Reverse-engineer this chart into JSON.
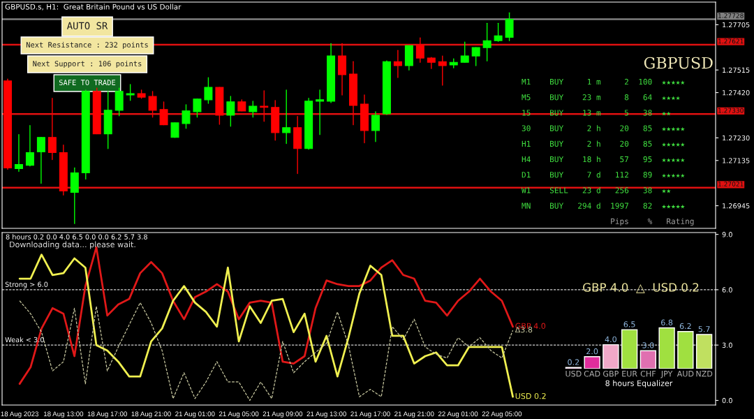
{
  "chart_data": [
    {
      "type": "candlestick",
      "title": "GBPUSD.s, H1:  Great Britain Pound vs US Dollar",
      "categories": [
        null,
        null,
        null,
        null,
        null,
        null,
        null,
        null,
        null,
        null,
        null,
        null,
        null,
        null,
        null,
        null,
        null,
        null,
        null,
        null,
        null,
        null,
        null,
        null,
        null,
        null,
        null,
        null,
        null,
        null,
        null,
        null,
        null,
        null,
        null,
        null,
        null,
        null,
        null,
        null,
        null,
        null,
        null,
        null,
        null,
        null,
        null,
        null,
        null,
        null,
        null,
        null,
        null,
        null,
        null,
        null,
        null,
        null,
        null,
        null,
        null,
        null,
        null,
        null
      ],
      "ohlc": [
        [
          1.27469,
          1.27477,
          1.27098,
          1.27104
        ],
        [
          1.27101,
          1.27244,
          1.27089,
          1.27118
        ],
        [
          1.27115,
          1.27282,
          1.27112,
          1.27168
        ],
        [
          1.27171,
          1.27232,
          1.27039,
          1.27232
        ],
        [
          1.27232,
          1.27396,
          1.27139,
          1.27168
        ],
        [
          1.27168,
          1.272,
          1.2699,
          1.27007
        ],
        [
          1.27001,
          1.27104,
          1.2687,
          1.27083
        ],
        [
          1.27083,
          1.27431,
          1.27057,
          1.27425
        ],
        [
          1.27425,
          1.27439,
          1.27247,
          1.27247
        ],
        [
          1.27247,
          1.27425,
          1.27185,
          1.27346
        ],
        [
          1.27346,
          1.27439,
          1.27323,
          1.27425
        ],
        [
          1.2741,
          1.27454,
          1.27387,
          1.27416
        ],
        [
          1.27416,
          1.27431,
          1.27396,
          1.27401
        ],
        [
          1.27404,
          1.27425,
          1.27317,
          1.27346
        ],
        [
          1.27349,
          1.27381,
          1.27285,
          1.27285
        ],
        [
          1.27232,
          1.27293,
          1.27232,
          1.27293
        ],
        [
          1.2729,
          1.27369,
          1.2727,
          1.27343
        ],
        [
          1.2734,
          1.27393,
          1.27317,
          1.27393
        ],
        [
          1.2739,
          1.27483,
          1.27375,
          1.27442
        ],
        [
          1.27442,
          1.27442,
          1.27287,
          1.27325
        ],
        [
          1.27325,
          1.27404,
          1.27279,
          1.27381
        ],
        [
          1.27381,
          1.2739,
          1.27343,
          1.27343
        ],
        [
          1.2734,
          1.27384,
          1.27317,
          1.27363
        ],
        [
          1.27363,
          1.27428,
          1.27299,
          1.27358
        ],
        [
          1.27358,
          1.27387,
          1.2722,
          1.27252
        ],
        [
          1.27252,
          1.27431,
          1.27206,
          1.27273
        ],
        [
          1.27273,
          1.2732,
          1.2708,
          1.27185
        ],
        [
          1.27185,
          1.27396,
          1.27182,
          1.27384
        ],
        [
          1.27384,
          1.27431,
          1.27244,
          1.2739
        ],
        [
          1.27384,
          1.27626,
          1.27378,
          1.27574
        ],
        [
          1.27574,
          1.27626,
          1.2741,
          1.27495
        ],
        [
          1.27498,
          1.2755,
          1.27285,
          1.27366
        ],
        [
          1.27372,
          1.2741,
          1.27209,
          1.27261
        ],
        [
          1.27261,
          1.2734,
          1.27214,
          1.27325
        ],
        [
          1.27331,
          1.27553,
          1.27328,
          1.2755
        ],
        [
          1.2755,
          1.27597,
          1.27483,
          1.27533
        ],
        [
          1.27533,
          1.27617,
          1.27515,
          1.27617
        ],
        [
          1.2762,
          1.2765,
          1.27547,
          1.27565
        ],
        [
          1.27565,
          1.27568,
          1.27521,
          1.27547
        ],
        [
          1.2755,
          1.27574,
          1.27451,
          1.27533
        ],
        [
          1.27536,
          1.27562,
          1.27524,
          1.27547
        ],
        [
          1.27547,
          1.27632,
          1.27547,
          1.27574
        ],
        [
          1.27574,
          1.27609,
          1.27533,
          1.27609
        ],
        [
          1.27609,
          1.27711,
          1.27553,
          1.27638
        ],
        [
          1.27638,
          1.27711,
          1.27635,
          1.27658
        ],
        [
          1.27652,
          1.27755,
          1.27638,
          1.27728
        ],
        null,
        null,
        null,
        null,
        null,
        null,
        null,
        null,
        null,
        null,
        null,
        null,
        null,
        null,
        null,
        null,
        null,
        null
      ],
      "ylim": [
        1.2685,
        1.278
      ],
      "yticks": [
        {
          "value": 1.26945,
          "label": "1.26945"
        },
        {
          "value": 1.27135,
          "label": "1.27135"
        },
        {
          "value": 1.2723,
          "label": "1.27230"
        },
        {
          "value": 1.2742,
          "label": "1.27420"
        },
        {
          "value": 1.27515,
          "label": "1.27515"
        },
        {
          "value": 1.27705,
          "label": "1.27705"
        }
      ],
      "tick_labels": "y",
      "ref_lines": [
        {
          "axis": "y",
          "value": 1.27728,
          "label": "1.27728",
          "color": "#808080"
        },
        {
          "axis": "y",
          "value": 1.27621,
          "label": "1.27621",
          "color": "#e01010"
        },
        {
          "axis": "y",
          "value": 1.2733,
          "label": "1.27330",
          "color": "#e01010"
        },
        {
          "axis": "y",
          "value": 1.27021,
          "label": "1.27021",
          "color": "#e01010"
        }
      ],
      "annotations": [
        "AUTO SR",
        "Next Resistance : 232 points",
        "Next Support : 106 points",
        "SAFE TO TRADE",
        "GBPUSD",
        "M1    BUY     1 m     2  100  ★★★★★",
        "M5    BUY    23 m     8   64  ★★★★",
        "15    BUY    13 m     5   38  ★★",
        "30    BUY     2 h    20   85  ★★★★★",
        "H1    BUY     2 h    20   85  ★★★★★",
        "H4    BUY    18 h    57   95  ★★★★★",
        "D1    BUY     7 d   112   89  ★★★★★",
        "W1    SELL   23 d   256   38  ★★",
        "MN    BUY   294 d  1997   82  ★★★★★",
        "                   Pips    %   Rating"
      ]
    },
    {
      "type": "line",
      "categories": [
        "18 Aug 2023",
        null,
        null,
        null,
        "18 Aug 13:00",
        null,
        null,
        null,
        "18 Aug 17:00",
        null,
        null,
        null,
        "18 Aug 21:00",
        null,
        null,
        null,
        "21 Aug 01:00",
        null,
        null,
        null,
        "21 Aug 05:00",
        null,
        null,
        null,
        "21 Aug 09:00",
        null,
        null,
        null,
        "21 Aug 13:00",
        null,
        null,
        null,
        "21 Aug 17:00",
        null,
        null,
        null,
        "21 Aug 21:00",
        null,
        null,
        null,
        "22 Aug 01:00",
        null,
        null,
        null,
        "22 Aug 05:00",
        null,
        null,
        null,
        null,
        null,
        null,
        null,
        null,
        null,
        null,
        null,
        null,
        null,
        null,
        null,
        null,
        null,
        null,
        null
      ],
      "series": [
        {
          "name": "GBP 4.0",
          "color": "#e01818",
          "values": [
            0.9,
            1.8,
            3.9,
            5.0,
            4.7,
            2.4,
            6.2,
            8.3,
            4.6,
            5.2,
            5.5,
            6.9,
            7.5,
            6.9,
            5.4,
            4.4,
            5.6,
            5.9,
            6.3,
            5.9,
            4.4,
            5.3,
            5.4,
            5.3,
            2.1,
            2.0,
            2.4,
            5.0,
            6.5,
            6.3,
            6.2,
            6.2,
            6.5,
            7.2,
            7.6,
            6.8,
            6.6,
            5.4,
            5.3,
            4.6,
            5.4,
            5.9,
            6.6,
            5.9,
            5.4,
            4.0,
            null,
            null,
            null,
            null,
            null,
            null,
            null,
            null,
            null,
            null,
            null,
            null,
            null,
            null,
            null,
            null,
            null,
            null
          ]
        },
        {
          "name": "USD 0.2",
          "color": "#f0f050",
          "values": [
            6.6,
            6.6,
            7.9,
            6.8,
            6.9,
            7.7,
            7.2,
            3.0,
            2.7,
            2.1,
            1.3,
            1.3,
            3.2,
            3.9,
            5.4,
            6.2,
            5.3,
            4.8,
            4.0,
            7.2,
            3.2,
            5.1,
            4.2,
            5.4,
            5.5,
            3.7,
            4.7,
            2.1,
            3.5,
            1.3,
            3.4,
            5.8,
            7.3,
            6.8,
            3.5,
            3.5,
            2.0,
            2.4,
            2.6,
            1.9,
            1.9,
            2.9,
            2.9,
            2.9,
            2.9,
            0.2,
            null,
            null,
            null,
            null,
            null,
            null,
            null,
            null,
            null,
            null,
            null,
            null,
            null,
            null,
            null,
            null,
            null,
            null
          ]
        },
        {
          "name": "Δ3.8",
          "color": "#c8c8a0",
          "line_style": "dashed",
          "values": [
            5.4,
            4.7,
            3.7,
            1.6,
            2.1,
            5.0,
            0.9,
            5.1,
            1.6,
            2.9,
            4.1,
            5.3,
            4.2,
            2.7,
            0.1,
            1.5,
            0.1,
            1.0,
            2.1,
            1.0,
            1.0,
            0.0,
            1.0,
            0.1,
            3.2,
            1.5,
            2.1,
            2.6,
            3.1,
            4.8,
            3.0,
            0.2,
            0.6,
            0.2,
            4.0,
            3.3,
            4.4,
            2.9,
            2.5,
            2.3,
            3.4,
            2.9,
            3.4,
            2.7,
            2.3,
            3.8,
            null,
            null,
            null,
            null,
            null,
            null,
            null,
            null,
            null,
            null,
            null,
            null,
            null,
            null,
            null,
            null,
            null,
            null
          ]
        }
      ],
      "ylim": [
        -0.25,
        9.1
      ],
      "yticks": [
        {
          "value": 0,
          "label": "0.0"
        },
        {
          "value": 3,
          "label": "3.0"
        },
        {
          "value": 6,
          "label": "6.0"
        },
        {
          "value": 9,
          "label": "9.0"
        }
      ],
      "ref_lines": [
        {
          "axis": "y",
          "value": 6,
          "label": "Strong > 6.0",
          "color": "#d0d0d0",
          "line_style": "dashed"
        },
        {
          "axis": "y",
          "value": 3,
          "label": "Weak < 3.0",
          "color": "#d0d0d0",
          "line_style": "dashed"
        }
      ],
      "annotations": [
        "8 hours 0.2 0.0 4.0 6.5 0.0 0.0 6.2 5.7 3.8",
        "Downloading data... please wait.",
        "GBP 4.0  △  USD 0.2"
      ]
    },
    {
      "type": "bar",
      "categories": [
        "USD",
        "CAD",
        "GBP",
        "EUR",
        "CHF",
        "JPY",
        "AUD",
        "NZD"
      ],
      "values": [
        0.2,
        2.0,
        4.0,
        6.5,
        3.0,
        6.8,
        6.2,
        5.7
      ],
      "colors": [
        "#c83c9c",
        "#e02c9c",
        "#f0a8c8",
        "#a0e040",
        "#e070b0",
        "#a0e040",
        "#a0e040",
        "#c0e060"
      ],
      "value_labels": [
        "0.2",
        "2.0",
        "4.0",
        "6.5",
        "3.0",
        "6.8",
        "6.2",
        "5.7"
      ],
      "xlabel": "8 hours Equalizer"
    }
  ]
}
